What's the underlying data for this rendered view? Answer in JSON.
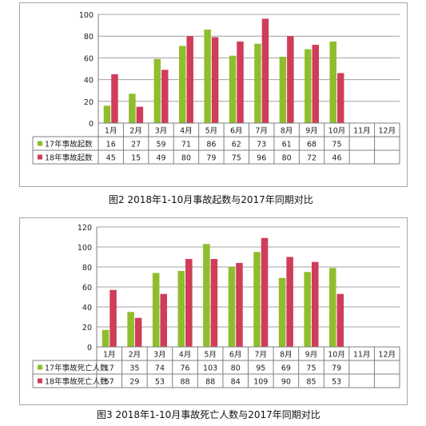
{
  "captions": [
    "图2   2018年1-10月事故起数与2017年同期对比",
    "图3  2018年1-10月事故死亡人数与2017年同期对比"
  ],
  "colors": {
    "series_2017": "#8fbe2c",
    "series_2018": "#cf3d5a",
    "grid": "#a0a0a0",
    "border": "#7f7f7f"
  },
  "chart_data": [
    {
      "type": "bar",
      "title": "",
      "categories": [
        "1月",
        "2月",
        "3月",
        "4月",
        "5月",
        "6月",
        "7月",
        "8月",
        "9月",
        "10月",
        "11月",
        "12月"
      ],
      "series": [
        {
          "name": "17年事故起数",
          "values": [
            16,
            27,
            59,
            71,
            86,
            62,
            73,
            61,
            68,
            75,
            null,
            null
          ]
        },
        {
          "name": "18年事故起数",
          "values": [
            45,
            15,
            49,
            80,
            79,
            75,
            96,
            80,
            72,
            46,
            null,
            null
          ]
        }
      ],
      "ylim": [
        0,
        100
      ],
      "yticks": [
        0,
        20,
        40,
        60,
        80,
        100
      ],
      "grid": true,
      "legend": "data-table-left"
    },
    {
      "type": "bar",
      "title": "",
      "categories": [
        "1月",
        "2月",
        "3月",
        "4月",
        "5月",
        "6月",
        "7月",
        "8月",
        "9月",
        "10月",
        "11月",
        "12月"
      ],
      "series": [
        {
          "name": "17年事故死亡人数",
          "values": [
            17,
            35,
            74,
            76,
            103,
            80,
            95,
            69,
            75,
            79,
            null,
            null
          ]
        },
        {
          "name": "18年事故死亡人数",
          "values": [
            57,
            29,
            53,
            88,
            88,
            84,
            109,
            90,
            85,
            53,
            null,
            null
          ]
        }
      ],
      "ylim": [
        0,
        120
      ],
      "yticks": [
        0,
        20,
        40,
        60,
        80,
        100,
        120
      ],
      "grid": true,
      "legend": "data-table-left"
    }
  ]
}
